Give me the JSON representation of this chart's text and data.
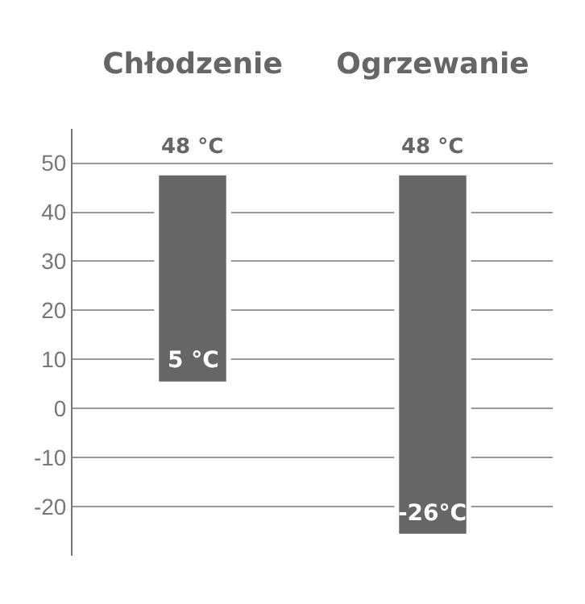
{
  "chart_data": {
    "type": "bar",
    "categories": [
      "Chłodzenie",
      "Ogrzewanie"
    ],
    "base": [
      5,
      -26
    ],
    "values": [
      43,
      74
    ],
    "color": "#666666",
    "ylim": [
      -30,
      57
    ],
    "yticks": [
      -20,
      -10,
      0,
      10,
      20,
      30,
      40,
      50
    ],
    "grid": "y",
    "annotations": [
      {
        "text": "48 °C",
        "x": "Chłodzenie",
        "y": 48
      },
      {
        "text": "5 °C",
        "x": "Chłodzenie",
        "y": 5
      },
      {
        "text": "48 °C",
        "x": "Ogrzewanie",
        "y": 48
      },
      {
        "text": "-26°C",
        "x": "Ogrzewanie",
        "y": -26
      }
    ]
  }
}
